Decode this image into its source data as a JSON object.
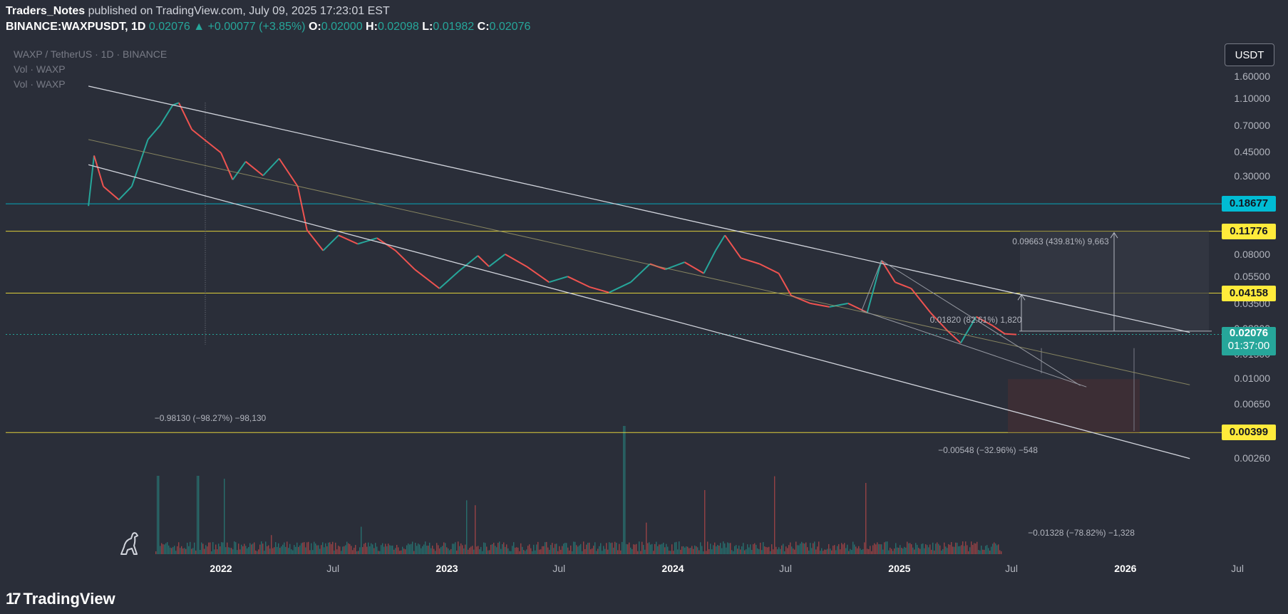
{
  "header": {
    "author": "Traders_Notes",
    "published_text": "published on TradingView.com, July 09, 2025 17:23:01 EST"
  },
  "ohlc": {
    "symbol": "BINANCE:WAXPUSDT, 1D",
    "last": "0.02076",
    "arrow": "▲",
    "change": "+0.00077 (+3.85%)",
    "o_label": "O:",
    "o": "0.02000",
    "h_label": "H:",
    "h": "0.02098",
    "l_label": "L:",
    "l": "0.01982",
    "c_label": "C:",
    "c": "0.02076"
  },
  "legend": {
    "title": "WAXP / TetherUS · 1D · BINANCE",
    "vol1": "Vol · WAXP",
    "vol2": "Vol · WAXP"
  },
  "currency_button": "USDT",
  "footer": {
    "brand": "TradingView",
    "logo_mark": "17"
  },
  "chart_data": {
    "type": "line",
    "title": "WAXP / TetherUS · 1D · BINANCE",
    "scale": "log",
    "y_ticks": [
      "1.60000",
      "1.10000",
      "0.70000",
      "0.45000",
      "0.30000",
      "0.08000",
      "0.05500",
      "0.03500",
      "0.02300",
      "0.01500",
      "0.01000",
      "0.00650",
      "0.00260"
    ],
    "x_ticks": [
      {
        "label": "2022",
        "bold": true
      },
      {
        "label": "Jul",
        "bold": false
      },
      {
        "label": "2023",
        "bold": true
      },
      {
        "label": "Jul",
        "bold": false
      },
      {
        "label": "2024",
        "bold": true
      },
      {
        "label": "Jul",
        "bold": false
      },
      {
        "label": "2025",
        "bold": true
      },
      {
        "label": "Jul",
        "bold": false
      },
      {
        "label": "2026",
        "bold": true
      },
      {
        "label": "Jul",
        "bold": false
      }
    ],
    "price_path": [
      [
        "2021-06-01",
        0.18
      ],
      [
        "2021-06-10",
        0.42
      ],
      [
        "2021-06-25",
        0.25
      ],
      [
        "2021-07-20",
        0.2
      ],
      [
        "2021-08-10",
        0.25
      ],
      [
        "2021-09-05",
        0.55
      ],
      [
        "2021-09-25",
        0.7
      ],
      [
        "2021-10-15",
        0.98
      ],
      [
        "2021-10-25",
        1.02
      ],
      [
        "2021-11-15",
        0.65
      ],
      [
        "2021-12-05",
        0.55
      ],
      [
        "2022-01-01",
        0.44
      ],
      [
        "2022-01-20",
        0.28
      ],
      [
        "2022-02-10",
        0.38
      ],
      [
        "2022-03-10",
        0.3
      ],
      [
        "2022-04-05",
        0.4
      ],
      [
        "2022-05-05",
        0.25
      ],
      [
        "2022-05-20",
        0.12
      ],
      [
        "2022-06-15",
        0.085
      ],
      [
        "2022-07-10",
        0.11
      ],
      [
        "2022-08-10",
        0.095
      ],
      [
        "2022-09-10",
        0.105
      ],
      [
        "2022-10-10",
        0.085
      ],
      [
        "2022-11-10",
        0.062
      ],
      [
        "2022-12-20",
        0.045
      ],
      [
        "2023-01-20",
        0.06
      ],
      [
        "2023-02-20",
        0.078
      ],
      [
        "2023-03-10",
        0.065
      ],
      [
        "2023-04-05",
        0.08
      ],
      [
        "2023-05-10",
        0.065
      ],
      [
        "2023-06-15",
        0.05
      ],
      [
        "2023-07-15",
        0.055
      ],
      [
        "2023-08-20",
        0.046
      ],
      [
        "2023-09-20",
        0.042
      ],
      [
        "2023-10-25",
        0.05
      ],
      [
        "2023-11-25",
        0.068
      ],
      [
        "2023-12-20",
        0.062
      ],
      [
        "2024-01-20",
        0.07
      ],
      [
        "2024-02-20",
        0.058
      ],
      [
        "2024-03-10",
        0.085
      ],
      [
        "2024-03-25",
        0.11
      ],
      [
        "2024-04-20",
        0.075
      ],
      [
        "2024-05-20",
        0.068
      ],
      [
        "2024-06-20",
        0.058
      ],
      [
        "2024-07-10",
        0.04
      ],
      [
        "2024-08-10",
        0.035
      ],
      [
        "2024-09-10",
        0.033
      ],
      [
        "2024-10-10",
        0.035
      ],
      [
        "2024-11-10",
        0.03
      ],
      [
        "2024-12-03",
        0.072
      ],
      [
        "2024-12-25",
        0.05
      ],
      [
        "2025-01-20",
        0.045
      ],
      [
        "2025-02-20",
        0.03
      ],
      [
        "2025-03-20",
        0.022
      ],
      [
        "2025-04-10",
        0.018
      ],
      [
        "2025-05-05",
        0.028
      ],
      [
        "2025-06-01",
        0.024
      ],
      [
        "2025-06-20",
        0.021
      ],
      [
        "2025-07-09",
        0.02076
      ]
    ],
    "horizontal_levels": [
      {
        "value": 0.18677,
        "label": "0.18677",
        "color": "#00bcd4"
      },
      {
        "value": 0.11776,
        "label": "0.11776",
        "color": "#ffeb3b"
      },
      {
        "value": 0.04158,
        "label": "0.04158",
        "color": "#ffeb3b"
      },
      {
        "value": 0.00399,
        "label": "0.00399",
        "color": "#ffeb3b"
      }
    ],
    "last_price": {
      "value": "0.02076",
      "countdown": "01:37:00"
    },
    "channel": {
      "upper": [
        [
          "2021-06-01",
          1.35
        ],
        [
          "2026-04-15",
          0.0215
        ]
      ],
      "lower": [
        [
          "2021-06-01",
          0.36
        ],
        [
          "2026-04-15",
          0.00258
        ]
      ],
      "mid": [
        [
          "2021-06-01",
          0.55
        ],
        [
          "2026-04-15",
          0.0089
        ]
      ]
    },
    "wedge": {
      "upper": [
        [
          "2024-12-03",
          0.072
        ],
        [
          "2025-10-20",
          0.0088
        ]
      ],
      "lower": [
        [
          "2024-12-03",
          0.072
        ],
        [
          "2024-11-01",
          0.031
        ],
        [
          "2025-10-30",
          0.0086
        ]
      ]
    },
    "measurements": [
      {
        "text": "−0.98130 (−98.27%) −98,130"
      },
      {
        "text": "0.09663 (439.81%) 9,663"
      },
      {
        "text": "0.01820 (82.61%) 1,820"
      },
      {
        "text": "−0.00548 (−32.96%) −548"
      },
      {
        "text": "−0.01328 (−78.82%) −1,328"
      }
    ]
  }
}
